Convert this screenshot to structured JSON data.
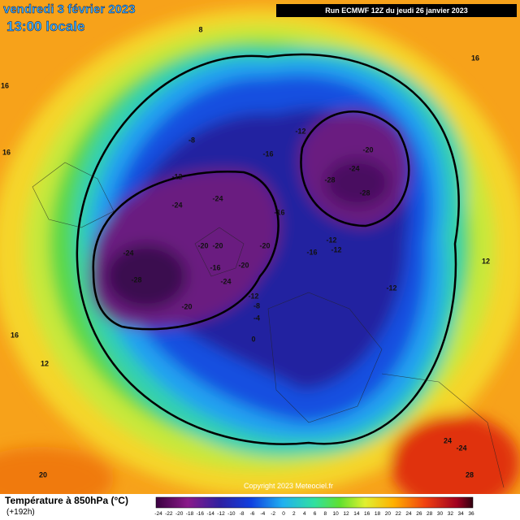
{
  "header": {
    "date": "vendredi 3 février 2023",
    "time": "13:00 locale",
    "run": "Run ECMWF 12Z du jeudi 26 janvier 2023"
  },
  "footer": {
    "legend_title": "Température à 850hPa (°C)",
    "lead": "(+192h)",
    "copyright": "Copyright 2023 Meteociel.fr"
  },
  "colorbar": {
    "labels": [
      -24,
      -22,
      -20,
      -18,
      -16,
      -14,
      -12,
      -10,
      -8,
      -6,
      -4,
      -2,
      0,
      2,
      4,
      6,
      8,
      10,
      12,
      14,
      16,
      18,
      20,
      22,
      24,
      26,
      28,
      30,
      32,
      34,
      36
    ]
  },
  "contour_labels": [
    -28,
    -24,
    -24,
    -24,
    -20,
    -20,
    -16,
    -24,
    -20,
    -20,
    -20,
    -16,
    -16,
    -12,
    -8,
    -12,
    -20,
    -24,
    -28,
    -28,
    -12,
    -12,
    -16,
    -12,
    -12,
    -8,
    -4,
    0,
    8,
    16,
    16,
    16,
    12,
    20,
    24,
    -24,
    28,
    16,
    12,
    16
  ]
}
